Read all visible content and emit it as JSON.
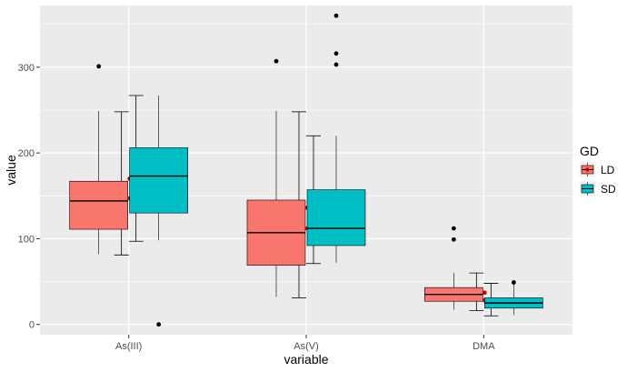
{
  "chart_data": {
    "type": "boxplot",
    "xlabel": "variable",
    "ylabel": "value",
    "ylim": [
      -12,
      372
    ],
    "y_ticks": [
      0,
      100,
      200,
      300
    ],
    "categories": [
      "As(III)",
      "As(V)",
      "DMA"
    ],
    "legend": {
      "title": "GD",
      "placement": "right"
    },
    "colors": {
      "LD": "#F8766D",
      "SD": "#00BFC4",
      "panel": "#EBEBEB",
      "mean_point": "#CC0000"
    },
    "grid": true,
    "series": [
      {
        "name": "LD",
        "boxes": [
          {
            "category": "As(III)",
            "q1": 111,
            "median": 144,
            "q3": 167,
            "whisker_low": 82,
            "whisker_high": 249,
            "outliers": [
              301
            ],
            "errorbar": [
              81,
              248
            ],
            "mean_points": [
              147,
              170
            ]
          },
          {
            "category": "As(V)",
            "q1": 69,
            "median": 107,
            "q3": 145,
            "whisker_low": 32,
            "whisker_high": 249,
            "outliers": [
              307
            ],
            "errorbar": [
              31,
              248
            ],
            "mean_points": [
              112,
              136
            ]
          },
          {
            "category": "DMA",
            "q1": 27,
            "median": 35,
            "q3": 43,
            "whisker_low": 17,
            "whisker_high": 60,
            "outliers": [
              99,
              112
            ],
            "errorbar": [
              16,
              60
            ],
            "mean_points": [
              28,
              37
            ]
          }
        ]
      },
      {
        "name": "SD",
        "boxes": [
          {
            "category": "As(III)",
            "q1": 130,
            "median": 173,
            "q3": 206,
            "whisker_low": 98,
            "whisker_high": 267,
            "outliers": [
              0
            ],
            "errorbar": [
              97,
              267
            ],
            "mean_points": []
          },
          {
            "category": "As(V)",
            "q1": 92,
            "median": 112,
            "q3": 157,
            "whisker_low": 72,
            "whisker_high": 220,
            "outliers": [
              303,
              316,
              360
            ],
            "errorbar": [
              71,
              220
            ],
            "mean_points": []
          },
          {
            "category": "DMA",
            "q1": 19,
            "median": 25,
            "q3": 31,
            "whisker_low": 11,
            "whisker_high": 48,
            "outliers": [
              49
            ],
            "errorbar": [
              10,
              48
            ],
            "mean_points": []
          }
        ]
      }
    ]
  }
}
